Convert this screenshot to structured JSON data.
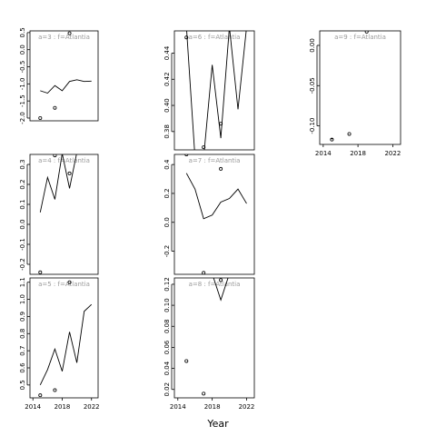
{
  "figure": {
    "xlabel": "Year"
  },
  "chart_data": [
    {
      "type": "line+scatter",
      "strip_label": "a=3 : f=Atlantia",
      "x_ticks": [
        2014,
        2018,
        2022
      ],
      "y_ticks": [
        0.5,
        0.0,
        -0.5,
        -1.0,
        -1.5,
        -2.0
      ],
      "y_tick_labels": [
        "0.5",
        "0.0",
        "-0.5",
        "-1.0",
        "-1.5",
        "-2.0"
      ],
      "xlim": [
        2013.6,
        2022.9
      ],
      "ylim": [
        -2.08,
        0.55
      ],
      "line": {
        "x": [
          2015,
          2016,
          2017,
          2018,
          2019,
          2020,
          2021,
          2022
        ],
        "y": [
          -1.2,
          -1.27,
          -1.05,
          -1.2,
          -0.93,
          -0.88,
          -0.93,
          -0.92
        ]
      },
      "points": {
        "x": [
          2015,
          2017,
          2019
        ],
        "y": [
          -2.0,
          -1.7,
          0.48
        ]
      }
    },
    {
      "type": "line+scatter",
      "strip_label": "a=6 : f=Atlantia",
      "x_ticks": [
        2014,
        2018,
        2022
      ],
      "y_ticks": [
        0.44,
        0.42,
        0.4,
        0.38
      ],
      "y_tick_labels": [
        "0.44",
        "0.42",
        "0.40",
        "0.38"
      ],
      "xlim": [
        2013.6,
        2022.9
      ],
      "ylim": [
        0.366,
        0.457
      ],
      "line": {
        "x": [
          2015,
          2016,
          2017,
          2018,
          2019,
          2020,
          2021,
          2022
        ],
        "y": [
          0.46,
          0.36,
          0.36,
          0.431,
          0.375,
          0.46,
          0.397,
          0.46
        ]
      },
      "points": {
        "x": [
          2015,
          2017,
          2019
        ],
        "y": [
          0.452,
          0.368,
          0.386
        ]
      }
    },
    {
      "type": "line+scatter",
      "strip_label": "a=9 : f=Atlantia",
      "x_ticks": [
        2014,
        2018,
        2022
      ],
      "x_tick_labels": [
        "2014",
        "2018",
        "2022"
      ],
      "y_ticks": [
        0.0,
        -0.05,
        -0.1
      ],
      "y_tick_labels": [
        "0.00",
        "-0.05",
        "-0.10"
      ],
      "xlim": [
        2013.6,
        2022.9
      ],
      "ylim": [
        -0.123,
        0.018
      ],
      "line": {
        "x": [
          2015
        ],
        "y": [
          -0.116
        ]
      },
      "points": {
        "x": [
          2015,
          2017,
          2019
        ],
        "y": [
          -0.117,
          -0.11,
          0.017
        ]
      }
    },
    {
      "type": "line+scatter",
      "strip_label": "a=4 : f=Atlantia",
      "x_ticks": [
        2014,
        2018,
        2022
      ],
      "y_ticks": [
        0.3,
        0.2,
        0.1,
        0.0,
        -0.1,
        -0.2
      ],
      "y_tick_labels": [
        "0.3",
        "0.2",
        "0.1",
        "0.0",
        "-0.1",
        "-0.2"
      ],
      "xlim": [
        2013.6,
        2022.9
      ],
      "ylim": [
        -0.25,
        0.35
      ],
      "line": {
        "x": [
          2015,
          2016,
          2017,
          2018,
          2019,
          2020
        ],
        "y": [
          0.06,
          0.235,
          0.125,
          0.355,
          0.18,
          0.36
        ]
      },
      "points": {
        "x": [
          2015,
          2017,
          2019
        ],
        "y": [
          -0.24,
          0.345,
          0.255
        ]
      }
    },
    {
      "type": "line+scatter",
      "strip_label": "a=7 : f=Atlantia",
      "x_ticks": [
        2014,
        2018,
        2022
      ],
      "y_ticks": [
        0.4,
        0.2,
        0.0,
        -0.2
      ],
      "y_tick_labels": [
        "0.4",
        "0.2",
        "0.0",
        "-0.2"
      ],
      "xlim": [
        2013.6,
        2022.9
      ],
      "ylim": [
        -0.36,
        0.47
      ],
      "line": {
        "x": [
          2015,
          2016,
          2017,
          2018,
          2019,
          2020,
          2021,
          2022
        ],
        "y": [
          0.34,
          0.23,
          0.025,
          0.05,
          0.14,
          0.165,
          0.23,
          0.13
        ]
      },
      "points": {
        "x": [
          2015,
          2017,
          2019
        ],
        "y": [
          0.47,
          -0.35,
          0.37
        ]
      }
    },
    {
      "type": "line+scatter",
      "strip_label": "a=5 : f=Atlantia",
      "x_ticks": [
        2014,
        2018,
        2022
      ],
      "x_tick_labels": [
        "2014",
        "2018",
        "2022"
      ],
      "y_ticks": [
        1.1,
        1.0,
        0.9,
        0.8,
        0.7,
        0.6,
        0.5
      ],
      "y_tick_labels": [
        "1.1",
        "1.0",
        "0.9",
        "0.8",
        "0.7",
        "0.6",
        "0.5"
      ],
      "xlim": [
        2013.6,
        2022.9
      ],
      "ylim": [
        0.425,
        1.125
      ],
      "line": {
        "x": [
          2015,
          2016,
          2017,
          2018,
          2019,
          2020,
          2021,
          2022
        ],
        "y": [
          0.5,
          0.59,
          0.71,
          0.58,
          0.81,
          0.63,
          0.93,
          0.97
        ]
      },
      "points": {
        "x": [
          2015,
          2017,
          2019
        ],
        "y": [
          0.44,
          0.47,
          1.1
        ]
      }
    },
    {
      "type": "line+scatter",
      "strip_label": "a=8 : f=Atlantia",
      "x_ticks": [
        2014,
        2018,
        2022
      ],
      "x_tick_labels": [
        "2014",
        "2018",
        "2022"
      ],
      "y_ticks": [
        0.12,
        0.1,
        0.08,
        0.06,
        0.04,
        0.02
      ],
      "y_tick_labels": [
        "0.12",
        "0.10",
        "0.08",
        "0.06",
        "0.04",
        "0.02"
      ],
      "xlim": [
        2013.6,
        2022.9
      ],
      "ylim": [
        0.012,
        0.126
      ],
      "line": {
        "x": [
          2018,
          2019,
          2020
        ],
        "y": [
          0.13,
          0.105,
          0.13
        ]
      },
      "points": {
        "x": [
          2015,
          2017,
          2019
        ],
        "y": [
          0.047,
          0.016,
          0.124
        ]
      }
    }
  ]
}
